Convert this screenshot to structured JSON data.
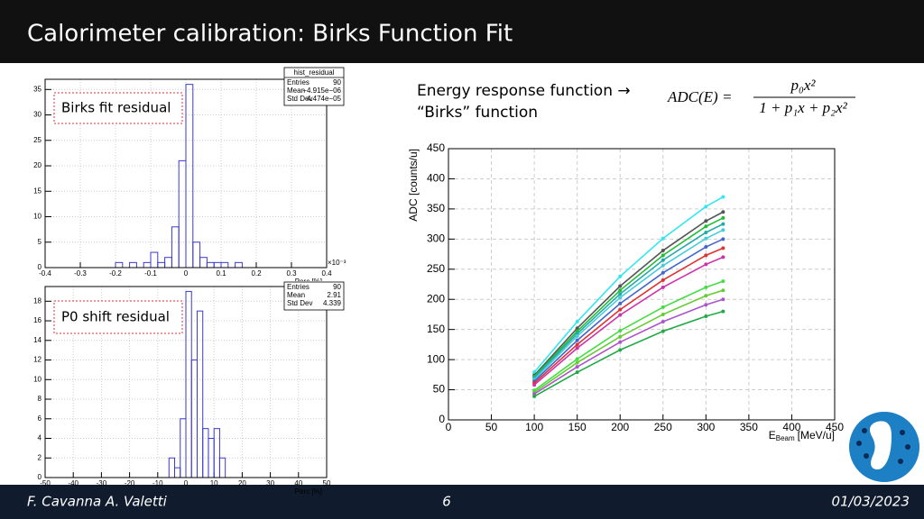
{
  "header": {
    "title": "Calorimeter calibration: Birks Function Fit"
  },
  "description": {
    "line1": "Energy response function →",
    "line2": "“Birks” function"
  },
  "formula": {
    "lhs": "ADC(E) =",
    "numerator": "p₀x²",
    "denominator": "1 + p₁x + p₂x²"
  },
  "footer": {
    "authors": "F. Cavanna A. Valetti",
    "page": "6",
    "date": "01/03/2023"
  },
  "chart_data": [
    {
      "type": "histogram",
      "annotation": "Birks fit residual",
      "x_label": "Perc [%]",
      "x_exponent": "×10⁻³",
      "color": "#3a3acc",
      "grid": true,
      "stats": {
        "title": "hist_residual",
        "rows": [
          [
            "Entries",
            "90"
          ],
          [
            "Mean",
            "−4.915e−06"
          ],
          [
            "Std Dev",
            "4.474e−05"
          ]
        ]
      },
      "bins": [
        -0.4,
        -0.38,
        -0.36,
        -0.34,
        -0.32,
        -0.3,
        -0.28,
        -0.26,
        -0.24,
        -0.22,
        -0.2,
        -0.18,
        -0.16,
        -0.14,
        -0.12,
        -0.1,
        -0.08,
        -0.06,
        -0.04,
        -0.02,
        0,
        0.02,
        0.04,
        0.06,
        0.08,
        0.1,
        0.12,
        0.14,
        0.16,
        0.18,
        0.2,
        0.22,
        0.24,
        0.26,
        0.28,
        0.3,
        0.32,
        0.34,
        0.36,
        0.38,
        0.4
      ],
      "values": [
        0,
        0,
        0,
        0,
        0,
        0,
        0,
        0,
        0,
        0,
        1,
        0,
        1,
        0,
        1,
        3,
        1,
        2,
        8,
        21,
        36,
        5,
        2,
        1,
        1,
        1,
        0,
        1,
        0,
        0,
        0,
        0,
        0,
        0,
        0,
        0,
        0,
        0,
        0,
        0
      ],
      "xlim": [
        -0.4,
        0.4
      ],
      "xticks": [
        -0.4,
        -0.3,
        -0.2,
        -0.1,
        0,
        0.1,
        0.2,
        0.3,
        0.4
      ],
      "ylim": [
        0,
        37
      ],
      "yticks": [
        0,
        5,
        10,
        15,
        20,
        25,
        30,
        35
      ]
    },
    {
      "type": "histogram",
      "annotation": "P0 shift residual",
      "x_label": "Perc [%]",
      "color": "#3a3acc",
      "grid": true,
      "stats": {
        "rows": [
          [
            "Entries",
            "90"
          ],
          [
            "Mean",
            "2.91"
          ],
          [
            "Std Dev",
            "4.339"
          ]
        ]
      },
      "bins": [
        -6,
        -4,
        -2,
        0,
        2,
        4,
        6,
        8,
        10,
        12,
        14
      ],
      "values": [
        2,
        1,
        6,
        19,
        12,
        17,
        5,
        4,
        5,
        2
      ],
      "xlim": [
        -50,
        50
      ],
      "xticks": [
        -50,
        -40,
        -30,
        -20,
        -10,
        0,
        10,
        20,
        30,
        40,
        50
      ],
      "ylim": [
        0,
        19.5
      ],
      "yticks": [
        0,
        2,
        4,
        6,
        8,
        10,
        12,
        14,
        16,
        18
      ]
    },
    {
      "type": "line",
      "y_label": "ADC [counts/u]",
      "x_label": {
        "main": "E",
        "sub": "Beam",
        "unit": "[MeV/u]"
      },
      "grid": true,
      "x": [
        100,
        150,
        200,
        250,
        300,
        320
      ],
      "series": [
        {
          "color": "#33e6f0",
          "values": [
            79,
            163,
            238,
            301,
            354,
            370
          ]
        },
        {
          "color": "#555555",
          "values": [
            74,
            152,
            222,
            281,
            330,
            345
          ]
        },
        {
          "color": "#22bb33",
          "values": [
            72,
            147,
            215,
            273,
            321,
            335
          ]
        },
        {
          "color": "#22aaaa",
          "values": [
            70,
            143,
            209,
            265,
            311,
            325
          ]
        },
        {
          "color": "#44ccdd",
          "values": [
            67,
            139,
            203,
            256,
            301,
            315
          ]
        },
        {
          "color": "#4466cc",
          "values": [
            64,
            132,
            193,
            244,
            287,
            300
          ]
        },
        {
          "color": "#dd3333",
          "values": [
            61,
            125,
            183,
            232,
            273,
            285
          ]
        },
        {
          "color": "#cc33aa",
          "values": [
            58,
            119,
            174,
            220,
            258,
            270
          ]
        },
        {
          "color": "#44dd44",
          "values": [
            49,
            101,
            148,
            187,
            220,
            230
          ]
        },
        {
          "color": "#66cc33",
          "values": [
            46,
            95,
            138,
            175,
            206,
            215
          ]
        },
        {
          "color": "#aa55cc",
          "values": [
            43,
            88,
            129,
            163,
            191,
            200
          ]
        },
        {
          "color": "#22aa44",
          "values": [
            39,
            79,
            116,
            147,
            172,
            180
          ]
        }
      ],
      "xlim": [
        0,
        450
      ],
      "xticks": [
        0,
        50,
        100,
        150,
        200,
        250,
        300,
        350,
        400,
        450
      ],
      "ylim": [
        0,
        450
      ],
      "yticks": [
        0,
        50,
        100,
        150,
        200,
        250,
        300,
        350,
        400,
        450
      ]
    }
  ]
}
